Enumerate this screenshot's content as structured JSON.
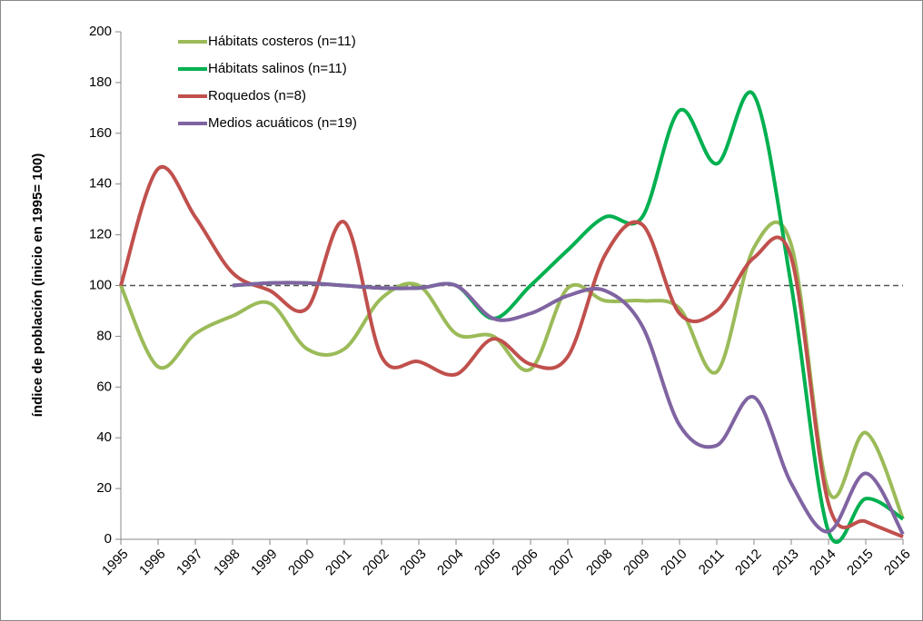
{
  "chart_data": {
    "type": "line",
    "y_label": "índice de población  (inicio en 1995= 100)",
    "categories": [
      "1995",
      "1996",
      "1997",
      "1998",
      "1999",
      "2000",
      "2001",
      "2002",
      "2003",
      "2004",
      "2005",
      "2006",
      "2007",
      "2008",
      "2009",
      "2010",
      "2011",
      "2012",
      "2013",
      "2014",
      "2015",
      "2016"
    ],
    "series": [
      {
        "name": "Hábitats costeros (n=11)",
        "color": "#9bbb59",
        "values": [
          100,
          68,
          81,
          88,
          93,
          75,
          75,
          95,
          100,
          81,
          80,
          67,
          99,
          94,
          94,
          91,
          66,
          115,
          116,
          19,
          42,
          8
        ]
      },
      {
        "name": "Hábitats salinos (n=11)",
        "color": "#00b050",
        "values": [
          null,
          null,
          null,
          100,
          101,
          101,
          100,
          99,
          99,
          100,
          87,
          100,
          114,
          127,
          127,
          169,
          148,
          175,
          100,
          3,
          16,
          8
        ]
      },
      {
        "name": "Roquedos (n=8)",
        "color": "#c0504d",
        "values": [
          100,
          146,
          127,
          105,
          98,
          91,
          125,
          72,
          70,
          65,
          79,
          69,
          72,
          112,
          124,
          89,
          90,
          111,
          111,
          14,
          7,
          1
        ]
      },
      {
        "name": "Medios acuáticos (n=19)",
        "color": "#8064a2",
        "values": [
          null,
          null,
          null,
          100,
          101,
          101,
          100,
          99,
          99,
          100,
          87,
          89,
          96,
          98,
          84,
          45,
          37,
          56,
          22,
          3,
          26,
          2
        ]
      }
    ],
    "reference_line": 100,
    "ylim": [
      0,
      200
    ],
    "yticks": [
      0,
      20,
      40,
      60,
      80,
      100,
      120,
      140,
      160,
      180,
      200
    ]
  }
}
